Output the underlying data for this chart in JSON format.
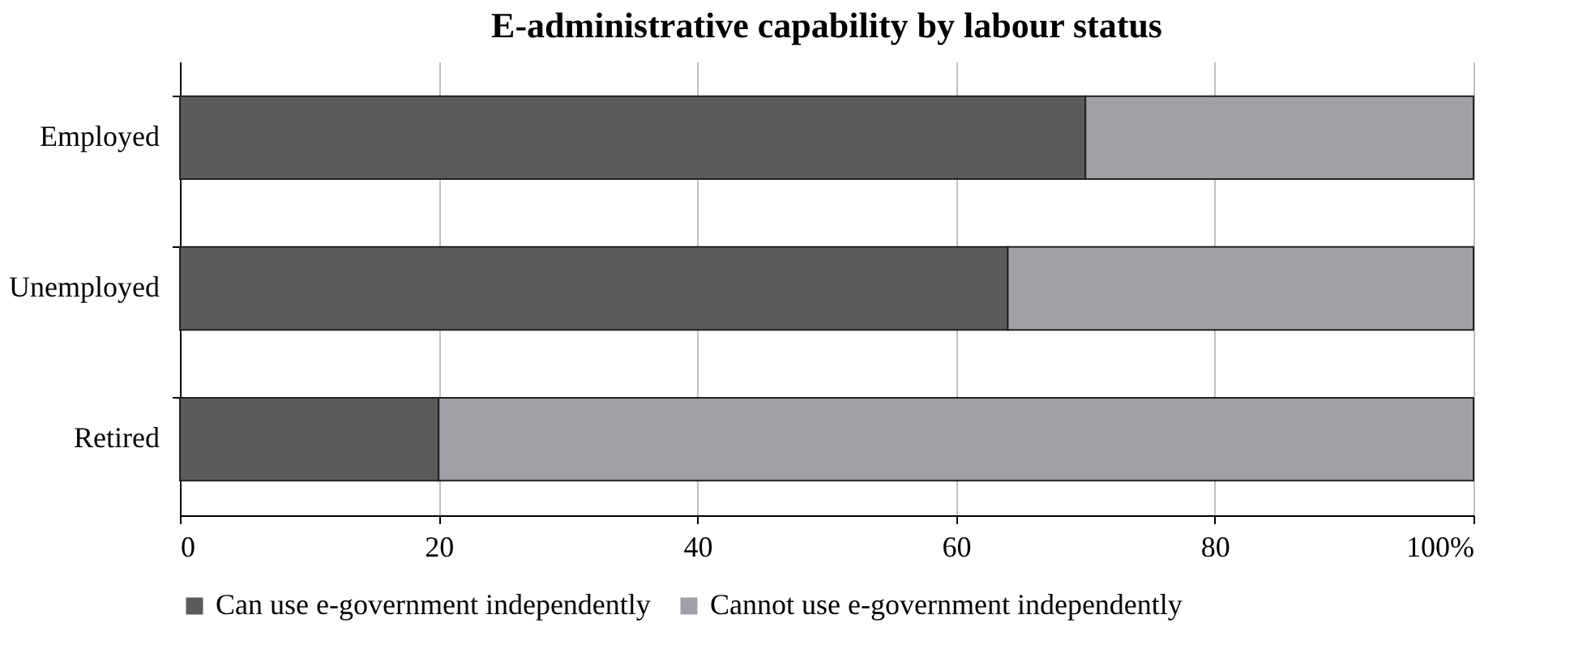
{
  "chart_data": {
    "type": "bar",
    "orientation": "horizontal",
    "stacked": true,
    "title": "E-administrative capability by labour status",
    "categories": [
      "Employed",
      "Unemployed",
      "Retired"
    ],
    "series": [
      {
        "name": "Can use e-government independently",
        "color": "#5b5b5d",
        "values": [
          70,
          64,
          20
        ]
      },
      {
        "name": "Cannot use e-government independently",
        "color": "#a0a1a4",
        "values": [
          30,
          36,
          80
        ]
      }
    ],
    "xlim": [
      0,
      100
    ],
    "xticks": [
      0,
      20,
      40,
      60,
      80,
      {
        "value": 100,
        "label": "100%"
      }
    ],
    "grid": "x",
    "legend": "bottom"
  }
}
